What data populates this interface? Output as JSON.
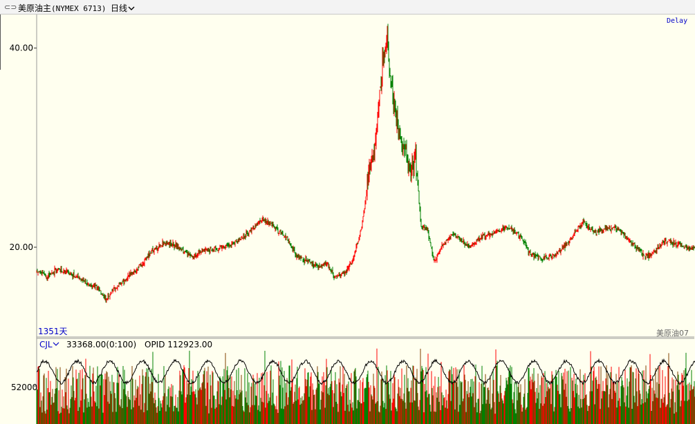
{
  "header": {
    "link_icon": "⊂⊃",
    "symbol_name": "美原油主",
    "symbol_code": "(NYMEX 6713)",
    "period_label": "日线",
    "period_icon": "chevron-down-icon"
  },
  "price_panel": {
    "delay_label": "Delay",
    "days_label": "1351天",
    "contract_label": "美原油07"
  },
  "volume_panel": {
    "indicator_label": "CJL",
    "volume_value": "33368.00(0:100)",
    "opid_label": "OPID 112923.00",
    "y_tick": "52000"
  },
  "colors": {
    "background": "#ffffef",
    "up": "#ff0000",
    "down": "#008000",
    "axis_text": "#000000",
    "label_blue": "#0000c8",
    "oi_line": "#000000"
  },
  "chart_data": {
    "type": "candlestick",
    "bars": 1351,
    "y_ticks": [
      20.0,
      40.0
    ],
    "anchor_closes": [
      [
        0,
        17.6
      ],
      [
        15,
        17.0
      ],
      [
        30,
        17.8
      ],
      [
        50,
        17.4
      ],
      [
        70,
        16.5
      ],
      [
        90,
        15.8
      ],
      [
        100,
        14.8
      ],
      [
        110,
        15.6
      ],
      [
        120,
        16.3
      ],
      [
        135,
        17.2
      ],
      [
        150,
        18.2
      ],
      [
        165,
        19.5
      ],
      [
        185,
        20.5
      ],
      [
        205,
        20.0
      ],
      [
        225,
        19.0
      ],
      [
        245,
        19.7
      ],
      [
        265,
        19.9
      ],
      [
        285,
        20.4
      ],
      [
        305,
        21.3
      ],
      [
        325,
        22.8
      ],
      [
        340,
        22.2
      ],
      [
        360,
        21.0
      ],
      [
        375,
        19.2
      ],
      [
        395,
        18.5
      ],
      [
        410,
        18.0
      ],
      [
        420,
        18.5
      ],
      [
        430,
        17.0
      ],
      [
        445,
        17.4
      ],
      [
        455,
        18.4
      ],
      [
        470,
        21.8
      ],
      [
        480,
        27.5
      ],
      [
        490,
        30.5
      ],
      [
        500,
        38.5
      ],
      [
        507,
        41.5
      ],
      [
        512,
        36.5
      ],
      [
        520,
        33.0
      ],
      [
        530,
        30.5
      ],
      [
        540,
        27.5
      ],
      [
        548,
        29.0
      ],
      [
        556,
        22.0
      ],
      [
        565,
        21.8
      ],
      [
        575,
        18.5
      ],
      [
        590,
        20.5
      ],
      [
        605,
        21.3
      ],
      [
        625,
        20.0
      ],
      [
        645,
        21.1
      ],
      [
        665,
        21.6
      ],
      [
        685,
        22.0
      ],
      [
        700,
        21.0
      ],
      [
        715,
        19.3
      ],
      [
        730,
        18.8
      ],
      [
        750,
        19.3
      ],
      [
        770,
        20.6
      ],
      [
        790,
        22.6
      ],
      [
        805,
        21.5
      ],
      [
        820,
        21.8
      ],
      [
        840,
        21.9
      ],
      [
        860,
        20.5
      ],
      [
        880,
        19.1
      ],
      [
        895,
        19.6
      ],
      [
        905,
        20.5
      ],
      [
        915,
        20.6
      ],
      [
        930,
        20.3
      ],
      [
        945,
        19.8
      ],
      [
        955,
        20.0
      ]
    ],
    "volume_ticks": [
      52000
    ]
  }
}
